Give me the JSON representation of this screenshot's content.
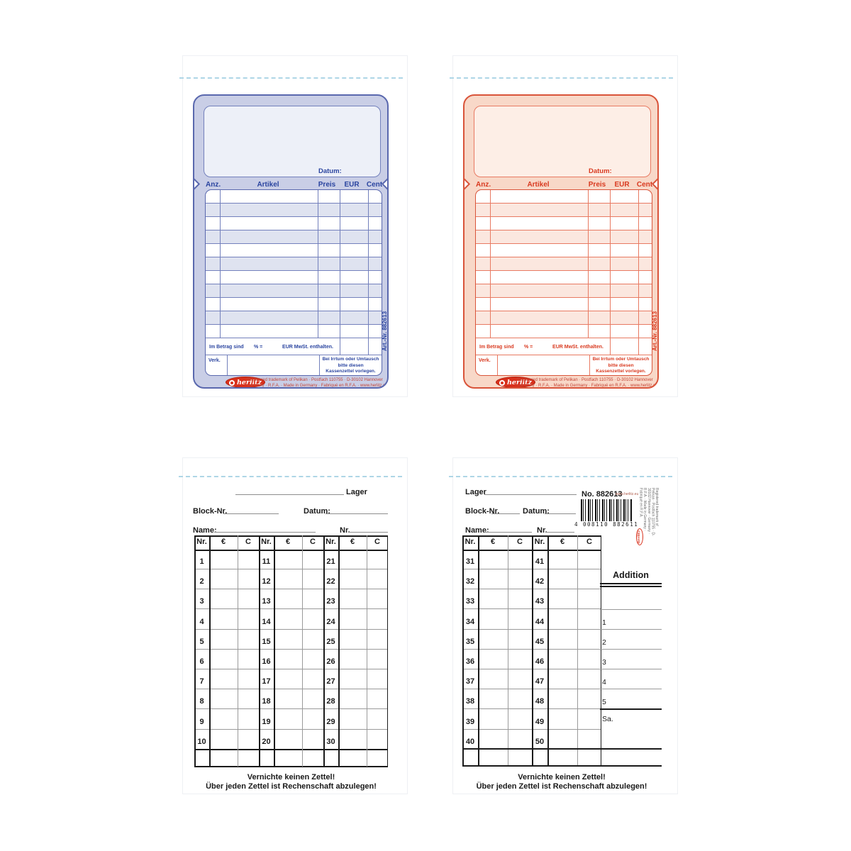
{
  "colors": {
    "blue_accent": "#2b45a0",
    "blue_fill": "#c9cee6",
    "blue_line": "#7380bc",
    "red_accent": "#d93a20",
    "red_fill": "#f8d8c8",
    "red_line": "#e87a62",
    "logo_red": "#d8311c",
    "footer_red": "#c44536",
    "ink_black": "#1a1a1a",
    "rule_gray": "#9a9a9a",
    "perforation_blue": "#aed6e6"
  },
  "receipt": {
    "datum_label": "Datum:",
    "col_anz": "Anz.",
    "col_artikel": "Artikel",
    "col_preis": "Preis",
    "col_eur": "EUR",
    "col_cent": "Cent",
    "row_count": 11,
    "mwst_prefix": "Im Betrag sind",
    "mwst_percent": "% =",
    "mwst_suffix": "EUR MwSt. enthalten.",
    "verk_label": "Verk.",
    "notice_lines": [
      "Bei Irrtum oder Umtausch",
      "bitte diesen",
      "Kassenzettel vorlegen."
    ],
    "art_nr": "Art.-Nr. 882613",
    "brand": "herlitz",
    "footer_line1": "Registered trademark of Pelikan · Postfach 110755 · D-30102 Hannover",
    "footer_line2": "Germany · R.F.A. · Made in Germany · Fabriqué en R.F.A. · www.herlitz.eu"
  },
  "tally": {
    "lager_label": "Lager",
    "block_label": "Block-Nr.",
    "datum_label": "Datum:",
    "name_label": "Name:",
    "nr_label": "Nr.",
    "header_nr": "Nr.",
    "header_eur": "€",
    "header_cent": "C",
    "footer_line1": "Vernichte keinen Zettel!",
    "footer_line2": "Über jeden Zettel ist Rechenschaft abzulegen!",
    "left_groups": [
      [
        1,
        2,
        3,
        4,
        5,
        6,
        7,
        8,
        9,
        10
      ],
      [
        11,
        12,
        13,
        14,
        15,
        16,
        17,
        18,
        19,
        20
      ],
      [
        21,
        22,
        23,
        24,
        25,
        26,
        27,
        28,
        29,
        30
      ]
    ],
    "right_groups": [
      [
        31,
        32,
        33,
        34,
        35,
        36,
        37,
        38,
        39,
        40
      ],
      [
        41,
        42,
        43,
        44,
        45,
        46,
        47,
        48,
        49,
        50
      ]
    ],
    "right": {
      "no_label": "No. 882613",
      "website": "www.herlitz.eu",
      "barcode_digits": "4 008110 882611",
      "side_text": "Registered trademark of Pelikan · Postfach 110755 · D-30102 Hannover · Germany · R.F.A. · Made in Germany · Fabriqué en R.F.A.",
      "side_brand": "herlitz",
      "addition_title": "Addition",
      "addition_labels": [
        "1",
        "2",
        "3",
        "4",
        "5"
      ],
      "sum_label": "Sa."
    }
  }
}
